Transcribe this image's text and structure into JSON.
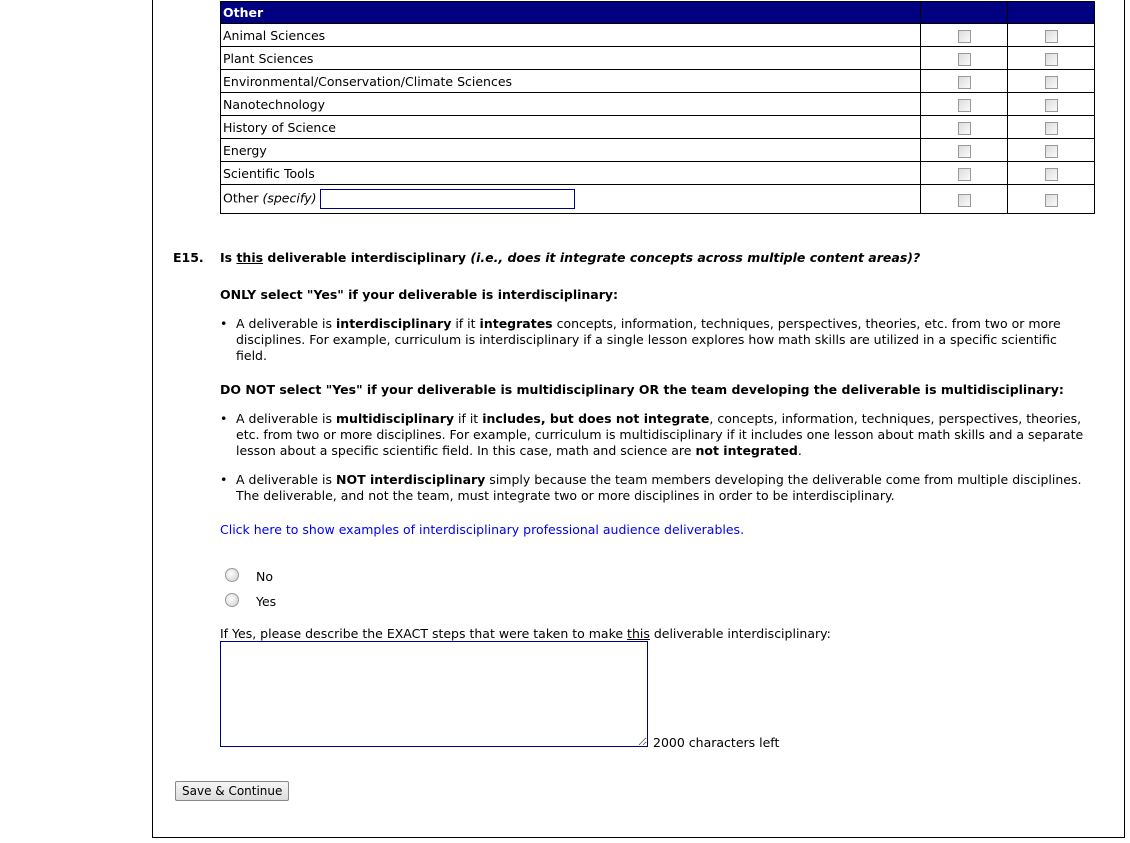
{
  "table": {
    "section_header": "Other",
    "rows": [
      {
        "label": "Animal Sciences"
      },
      {
        "label": "Plant Sciences"
      },
      {
        "label": "Environmental/Conservation/Climate Sciences"
      },
      {
        "label": "Nanotechnology"
      },
      {
        "label": "History of Science"
      },
      {
        "label": "Energy"
      },
      {
        "label": "Scientific Tools"
      }
    ],
    "other_label": "Other",
    "other_specify": "(specify)",
    "other_value": ""
  },
  "question": {
    "number": "E15.",
    "text_pre": "Is ",
    "text_underlined": "this",
    "text_post": " deliverable interdisciplinary ",
    "text_italic": "(i.e., does it integrate concepts across multiple content areas)?",
    "only_heading": "ONLY select \"Yes\" if your deliverable is interdisciplinary:",
    "bullet1": [
      {
        "t": "A deliverable is "
      },
      {
        "t": "interdisciplinary",
        "b": true
      },
      {
        "t": " if it "
      },
      {
        "t": "integrates",
        "b": true
      },
      {
        "t": " concepts, information, techniques, perspectives, theories, etc. from two or more disciplines. For example, curriculum is interdisciplinary if a single lesson explores how math skills are utilized in a specific scientific field."
      }
    ],
    "donot_heading": "DO NOT select \"Yes\" if your deliverable is multidisciplinary OR the team developing the deliverable is multidisciplinary:",
    "bullet2": [
      {
        "t": "A deliverable is "
      },
      {
        "t": "multidisciplinary",
        "b": true
      },
      {
        "t": " if it "
      },
      {
        "t": "includes, but does not integrate",
        "b": true
      },
      {
        "t": ", concepts, information, techniques, perspectives, theories, etc. from two or more disciplines. For example, curriculum is multidisciplinary if it includes one lesson about math skills and a separate lesson about a specific scientific field. In this case, math and science are "
      },
      {
        "t": "not integrated",
        "b": true
      },
      {
        "t": "."
      }
    ],
    "bullet3": [
      {
        "t": "A deliverable is "
      },
      {
        "t": "NOT interdisciplinary",
        "b": true
      },
      {
        "t": " simply because the team members developing the deliverable come from multiple disciplines. The deliverable, and not the team, must integrate two or more disciplines in order to be interdisciplinary."
      }
    ],
    "examples_link": "Click here to show examples of interdisciplinary professional audience deliverables.",
    "options": [
      {
        "label": "No",
        "selected": false
      },
      {
        "label": "Yes",
        "selected": false
      }
    ],
    "describe_pre": "If Yes, please describe the EXACT steps that were taken to make ",
    "describe_underlined": "this",
    "describe_post": " deliverable interdisciplinary:",
    "describe_value": "",
    "chars_left": "2000 characters left"
  },
  "save_button": "Save & Continue",
  "colors": {
    "header_bg": "#000080",
    "link": "#0000ee"
  }
}
